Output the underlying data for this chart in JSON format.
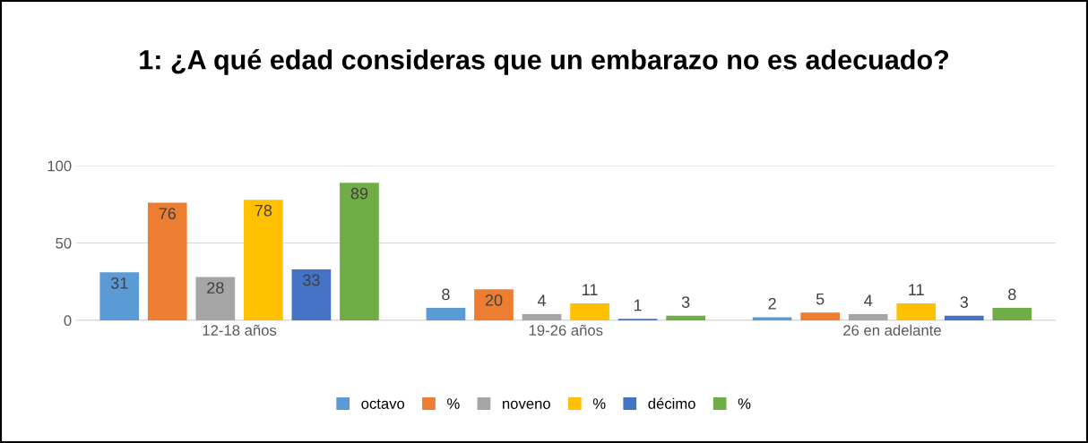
{
  "chart_data": {
    "type": "bar",
    "title": "1: ¿A qué edad consideras que un embarazo no es adecuado?",
    "categories": [
      "12-18 años",
      "19-26 años",
      "26 en adelante"
    ],
    "series": [
      {
        "name": "octavo",
        "color": "#5b9bd5",
        "values": [
          31,
          8,
          2
        ]
      },
      {
        "name": "%",
        "color": "#ed7d31",
        "values": [
          76,
          20,
          5
        ]
      },
      {
        "name": "noveno",
        "color": "#a5a5a5",
        "values": [
          28,
          4,
          4
        ]
      },
      {
        "name": "%",
        "color": "#ffc000",
        "values": [
          78,
          11,
          11
        ]
      },
      {
        "name": "décimo",
        "color": "#4472c4",
        "values": [
          33,
          1,
          3
        ]
      },
      {
        "name": "%",
        "color": "#70ad47",
        "values": [
          89,
          3,
          8
        ]
      }
    ],
    "ylim": [
      0,
      100
    ],
    "yticks": [
      0,
      50,
      100
    ],
    "grid": "y",
    "legend": "bottom",
    "data_labels": true
  }
}
